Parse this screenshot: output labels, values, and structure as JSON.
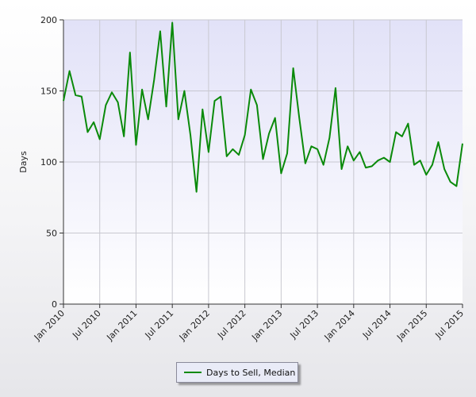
{
  "chart_data": {
    "type": "line",
    "title": "",
    "xlabel": "",
    "ylabel": "Days",
    "ylim": [
      0,
      200
    ],
    "yticks": [
      0,
      50,
      100,
      150,
      200
    ],
    "xlim": [
      "2010-01",
      "2015-07"
    ],
    "xticks": [
      "Jan 2010",
      "Jul 2010",
      "Jan 2011",
      "Jul 2011",
      "Jan 2012",
      "Jul 2012",
      "Jan 2013",
      "Jul 2013",
      "Jan 2014",
      "Jul 2014",
      "Jan 2015",
      "Jul 2015"
    ],
    "grid": true,
    "legend_position": "bottom-center",
    "colors": {
      "line": "#0a8a0a",
      "plot_background_top": "#e2e2f8",
      "plot_background_bottom": "#ffffff",
      "grid": "#c8c8d0"
    },
    "series": [
      {
        "name": "Days to Sell, Median",
        "x": [
          "2010-01",
          "2010-02",
          "2010-03",
          "2010-04",
          "2010-05",
          "2010-06",
          "2010-07",
          "2010-08",
          "2010-09",
          "2010-10",
          "2010-11",
          "2010-12",
          "2011-01",
          "2011-02",
          "2011-03",
          "2011-04",
          "2011-05",
          "2011-06",
          "2011-07",
          "2011-08",
          "2011-09",
          "2011-10",
          "2011-11",
          "2011-12",
          "2012-01",
          "2012-02",
          "2012-03",
          "2012-04",
          "2012-05",
          "2012-06",
          "2012-07",
          "2012-08",
          "2012-09",
          "2012-10",
          "2012-11",
          "2012-12",
          "2013-01",
          "2013-02",
          "2013-03",
          "2013-04",
          "2013-05",
          "2013-06",
          "2013-07",
          "2013-08",
          "2013-09",
          "2013-10",
          "2013-11",
          "2013-12",
          "2014-01",
          "2014-02",
          "2014-03",
          "2014-04",
          "2014-05",
          "2014-06",
          "2014-07",
          "2014-08",
          "2014-09",
          "2014-10",
          "2014-11",
          "2014-12",
          "2015-01",
          "2015-02",
          "2015-03",
          "2015-04",
          "2015-05",
          "2015-06",
          "2015-07"
        ],
        "values": [
          143,
          164,
          147,
          146,
          121,
          128,
          116,
          140,
          149,
          142,
          118,
          177,
          112,
          151,
          130,
          158,
          192,
          139,
          198,
          130,
          150,
          119,
          79,
          137,
          107,
          143,
          146,
          104,
          109,
          105,
          119,
          151,
          140,
          102,
          120,
          131,
          92,
          106,
          166,
          131,
          99,
          111,
          109,
          98,
          117,
          152,
          95,
          111,
          101,
          107,
          96,
          97,
          101,
          103,
          100,
          121,
          118,
          127,
          98,
          101,
          91,
          98,
          114,
          95,
          86,
          83,
          113
        ]
      }
    ]
  }
}
